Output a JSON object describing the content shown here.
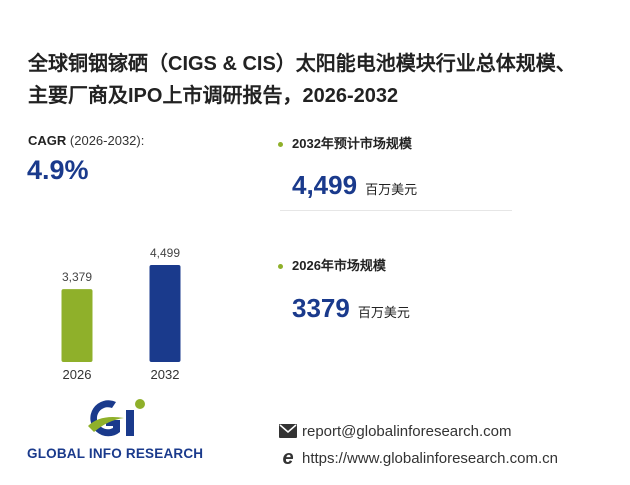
{
  "title": "全球铜铟镓硒（CIGS & CIS）太阳能电池模块行业总体规模、主要厂商及IPO上市调研报告，2026-2032",
  "cagr": {
    "label": "CAGR",
    "period": "(2026-2032):",
    "value": "4.9%"
  },
  "stats": [
    {
      "label": "2032年预计市场规模",
      "value": "4,499",
      "unit": "百万美元"
    },
    {
      "label": "2026年市场规模",
      "value": "3379",
      "unit": "百万美元"
    }
  ],
  "chart_data": {
    "type": "bar",
    "categories": [
      "2026",
      "2032"
    ],
    "values": [
      3379,
      4499
    ],
    "value_labels": [
      "3,379",
      "4,499"
    ],
    "colors": [
      "#8fb02a",
      "#1a3a8c"
    ]
  },
  "footer": {
    "brand": "GLOBAL INFO RESEARCH",
    "email": "report@globalinforesearch.com",
    "website": "https://www.globalinforesearch.com.cn"
  }
}
